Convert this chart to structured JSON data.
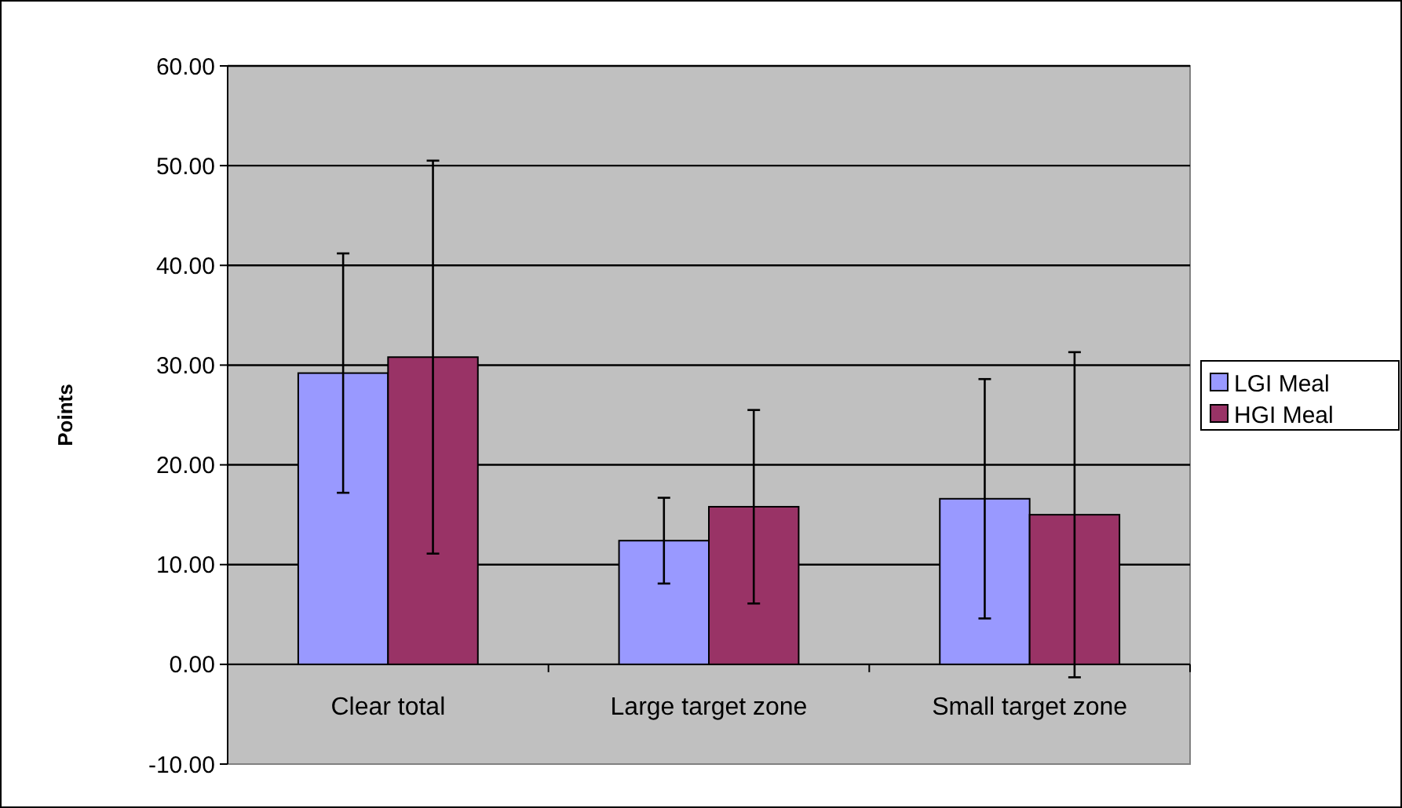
{
  "chart_data": {
    "type": "bar",
    "ylabel": "Points",
    "categories": [
      "Clear total",
      "Large target zone",
      "Small target zone"
    ],
    "series": [
      {
        "name": "LGI Meal",
        "color": "#9999ff",
        "values": [
          29.2,
          12.4,
          16.6
        ],
        "errors": [
          12.0,
          4.3,
          12.0
        ]
      },
      {
        "name": "HGI Meal",
        "color": "#993366",
        "values": [
          30.8,
          15.8,
          15.0
        ],
        "errors": [
          19.7,
          9.7,
          16.3
        ]
      }
    ],
    "ylim": [
      -10,
      60
    ],
    "yticks": [
      {
        "value": -10,
        "label": "-10.00"
      },
      {
        "value": 0,
        "label": "0.00"
      },
      {
        "value": 10,
        "label": "10.00"
      },
      {
        "value": 20,
        "label": "20.00"
      },
      {
        "value": 30,
        "label": "30.00"
      },
      {
        "value": 40,
        "label": "40.00"
      },
      {
        "value": 50,
        "label": "50.00"
      },
      {
        "value": 60,
        "label": "60.00"
      }
    ],
    "grid": "y",
    "legend": "right"
  }
}
